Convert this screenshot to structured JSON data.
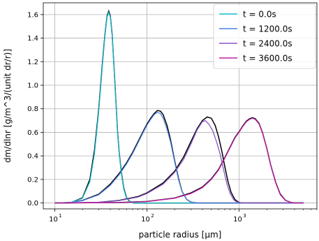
{
  "chart_data": {
    "type": "line",
    "xscale": "log",
    "xlabel": "particle radius [μm]",
    "ylabel": "dm/dlnr [g/m^3/(unit dr/r)]",
    "xlim": [
      7.5,
      7000
    ],
    "ylim": [
      -0.05,
      1.7
    ],
    "grid": true,
    "legend_position": "top-right",
    "xticks": [
      {
        "value": 10,
        "mantissa": "10",
        "exp": "1"
      },
      {
        "value": 100,
        "mantissa": "10",
        "exp": "2"
      },
      {
        "value": 1000,
        "mantissa": "10",
        "exp": "3"
      }
    ],
    "yticks": [
      "0.0",
      "0.2",
      "0.4",
      "0.6",
      "0.8",
      "1.0",
      "1.2",
      "1.4",
      "1.6"
    ],
    "series": [
      {
        "name": "t = 0.0s",
        "color": "#17becf",
        "points": [
          [
            10,
            0
          ],
          [
            15,
            0.002
          ],
          [
            20,
            0.04
          ],
          [
            24,
            0.18
          ],
          [
            27,
            0.42
          ],
          [
            30,
            0.78
          ],
          [
            33,
            1.18
          ],
          [
            35,
            1.42
          ],
          [
            37,
            1.58
          ],
          [
            38.5,
            1.62
          ],
          [
            40,
            1.58
          ],
          [
            42,
            1.42
          ],
          [
            44,
            1.14
          ],
          [
            46,
            0.86
          ],
          [
            48,
            0.6
          ],
          [
            50,
            0.42
          ],
          [
            53,
            0.24
          ],
          [
            56,
            0.12
          ],
          [
            60,
            0.04
          ],
          [
            65,
            0.01
          ],
          [
            72,
            0
          ],
          [
            5000,
            0
          ]
        ]
      },
      {
        "name": "t = 1200.0s",
        "color": "#4b83e6",
        "points": [
          [
            10,
            0
          ],
          [
            15,
            0.004
          ],
          [
            20,
            0.02
          ],
          [
            30,
            0.07
          ],
          [
            40,
            0.15
          ],
          [
            50,
            0.24
          ],
          [
            60,
            0.33
          ],
          [
            70,
            0.42
          ],
          [
            80,
            0.51
          ],
          [
            90,
            0.59
          ],
          [
            100,
            0.66
          ],
          [
            110,
            0.71
          ],
          [
            120,
            0.75
          ],
          [
            130,
            0.77
          ],
          [
            140,
            0.76
          ],
          [
            150,
            0.72
          ],
          [
            165,
            0.63
          ],
          [
            180,
            0.52
          ],
          [
            200,
            0.35
          ],
          [
            220,
            0.2
          ],
          [
            240,
            0.1
          ],
          [
            270,
            0.03
          ],
          [
            300,
            0.008
          ],
          [
            350,
            0
          ],
          [
            5000,
            0
          ]
        ]
      },
      {
        "name": "t = 2400.0s",
        "color": "#8a55c9",
        "points": [
          [
            10,
            0
          ],
          [
            30,
            0.005
          ],
          [
            50,
            0.02
          ],
          [
            80,
            0.05
          ],
          [
            100,
            0.08
          ],
          [
            150,
            0.16
          ],
          [
            200,
            0.26
          ],
          [
            250,
            0.37
          ],
          [
            300,
            0.5
          ],
          [
            350,
            0.62
          ],
          [
            400,
            0.69
          ],
          [
            430,
            0.7
          ],
          [
            470,
            0.67
          ],
          [
            520,
            0.61
          ],
          [
            570,
            0.52
          ],
          [
            620,
            0.42
          ],
          [
            680,
            0.28
          ],
          [
            740,
            0.16
          ],
          [
            800,
            0.08
          ],
          [
            880,
            0.025
          ],
          [
            950,
            0.008
          ],
          [
            1050,
            0
          ],
          [
            5000,
            0
          ]
        ]
      },
      {
        "name": "t = 3600.0s",
        "color": "#c41fa8",
        "points": [
          [
            10,
            0
          ],
          [
            50,
            0.003
          ],
          [
            100,
            0.012
          ],
          [
            200,
            0.04
          ],
          [
            300,
            0.08
          ],
          [
            400,
            0.13
          ],
          [
            500,
            0.2
          ],
          [
            600,
            0.28
          ],
          [
            700,
            0.38
          ],
          [
            800,
            0.47
          ],
          [
            900,
            0.55
          ],
          [
            1000,
            0.6
          ],
          [
            1100,
            0.65
          ],
          [
            1200,
            0.69
          ],
          [
            1300,
            0.71
          ],
          [
            1400,
            0.72
          ],
          [
            1500,
            0.71
          ],
          [
            1650,
            0.67
          ],
          [
            1800,
            0.59
          ],
          [
            2000,
            0.46
          ],
          [
            2200,
            0.32
          ],
          [
            2500,
            0.17
          ],
          [
            2800,
            0.07
          ],
          [
            3200,
            0.02
          ],
          [
            3700,
            0.004
          ],
          [
            4200,
            0
          ],
          [
            5000,
            0
          ]
        ]
      }
    ],
    "reference_curves": {
      "color": "#000000",
      "curves": [
        [
          [
            10,
            0
          ],
          [
            15,
            0.002
          ],
          [
            20,
            0.045
          ],
          [
            24,
            0.2
          ],
          [
            27,
            0.45
          ],
          [
            30,
            0.8
          ],
          [
            33,
            1.2
          ],
          [
            35,
            1.43
          ],
          [
            37,
            1.59
          ],
          [
            38.5,
            1.63
          ],
          [
            40,
            1.59
          ],
          [
            42,
            1.43
          ],
          [
            44,
            1.15
          ],
          [
            46,
            0.87
          ],
          [
            48,
            0.61
          ],
          [
            50,
            0.43
          ],
          [
            53,
            0.25
          ],
          [
            56,
            0.13
          ],
          [
            60,
            0.045
          ],
          [
            65,
            0.012
          ],
          [
            72,
            0
          ],
          [
            5000,
            0
          ]
        ],
        [
          [
            10,
            0
          ],
          [
            15,
            0.005
          ],
          [
            20,
            0.022
          ],
          [
            30,
            0.075
          ],
          [
            40,
            0.16
          ],
          [
            50,
            0.25
          ],
          [
            60,
            0.34
          ],
          [
            70,
            0.43
          ],
          [
            80,
            0.52
          ],
          [
            90,
            0.6
          ],
          [
            100,
            0.67
          ],
          [
            110,
            0.72
          ],
          [
            120,
            0.76
          ],
          [
            130,
            0.785
          ],
          [
            140,
            0.78
          ],
          [
            150,
            0.75
          ],
          [
            165,
            0.66
          ],
          [
            180,
            0.54
          ],
          [
            200,
            0.36
          ],
          [
            220,
            0.21
          ],
          [
            240,
            0.1
          ],
          [
            270,
            0.03
          ],
          [
            300,
            0.008
          ],
          [
            350,
            0
          ],
          [
            5000,
            0
          ]
        ],
        [
          [
            10,
            0
          ],
          [
            30,
            0.006
          ],
          [
            50,
            0.022
          ],
          [
            80,
            0.055
          ],
          [
            100,
            0.085
          ],
          [
            150,
            0.17
          ],
          [
            200,
            0.27
          ],
          [
            250,
            0.39
          ],
          [
            300,
            0.52
          ],
          [
            350,
            0.63
          ],
          [
            400,
            0.7
          ],
          [
            450,
            0.73
          ],
          [
            500,
            0.72
          ],
          [
            550,
            0.66
          ],
          [
            600,
            0.56
          ],
          [
            650,
            0.44
          ],
          [
            700,
            0.31
          ],
          [
            760,
            0.18
          ],
          [
            820,
            0.09
          ],
          [
            900,
            0.03
          ],
          [
            980,
            0.008
          ],
          [
            1050,
            0
          ],
          [
            5000,
            0
          ]
        ],
        [
          [
            10,
            0
          ],
          [
            50,
            0.004
          ],
          [
            100,
            0.013
          ],
          [
            200,
            0.042
          ],
          [
            300,
            0.085
          ],
          [
            400,
            0.135
          ],
          [
            500,
            0.205
          ],
          [
            600,
            0.285
          ],
          [
            700,
            0.385
          ],
          [
            800,
            0.475
          ],
          [
            900,
            0.555
          ],
          [
            1000,
            0.605
          ],
          [
            1100,
            0.655
          ],
          [
            1200,
            0.695
          ],
          [
            1300,
            0.715
          ],
          [
            1400,
            0.725
          ],
          [
            1500,
            0.715
          ],
          [
            1650,
            0.675
          ],
          [
            1800,
            0.595
          ],
          [
            2000,
            0.465
          ],
          [
            2200,
            0.325
          ],
          [
            2500,
            0.175
          ],
          [
            2800,
            0.075
          ],
          [
            3200,
            0.022
          ],
          [
            3700,
            0.004
          ],
          [
            4200,
            0
          ],
          [
            5000,
            0
          ]
        ]
      ]
    }
  }
}
